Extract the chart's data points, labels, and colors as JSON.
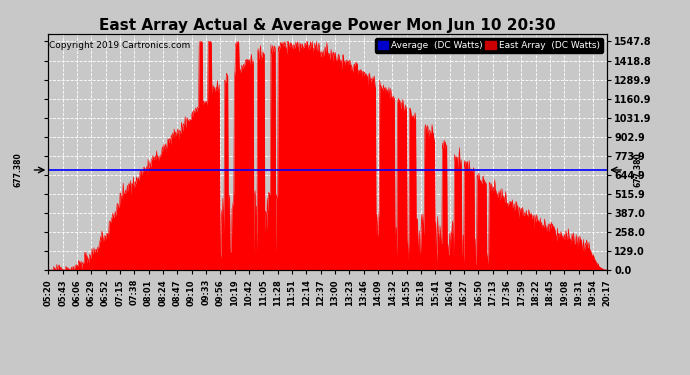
{
  "title": "East Array Actual & Average Power Mon Jun 10 20:30",
  "copyright": "Copyright 2019 Cartronics.com",
  "average_value": 677.38,
  "yticks": [
    0.0,
    129.0,
    258.0,
    387.0,
    515.9,
    644.9,
    773.9,
    902.9,
    1031.9,
    1160.9,
    1289.9,
    1418.8,
    1547.8
  ],
  "ymax": 1600,
  "ymin": 0,
  "legend_average_label": "Average  (DC Watts)",
  "legend_east_label": "East Array  (DC Watts)",
  "fill_color": "#ff0000",
  "avg_line_color": "#0000ff",
  "background_color": "#c8c8c8",
  "grid_color": "#ffffff",
  "title_fontsize": 11,
  "copyright_fontsize": 6.5,
  "tick_fontsize": 6,
  "ytick_fontsize": 7,
  "xtick_labels": [
    "05:20",
    "05:43",
    "06:06",
    "06:29",
    "06:52",
    "07:15",
    "07:38",
    "08:01",
    "08:24",
    "08:47",
    "09:10",
    "09:33",
    "09:56",
    "10:19",
    "10:42",
    "11:05",
    "11:28",
    "11:51",
    "12:14",
    "12:37",
    "13:00",
    "13:23",
    "13:46",
    "14:09",
    "14:32",
    "14:55",
    "15:18",
    "15:41",
    "16:04",
    "16:27",
    "16:50",
    "17:13",
    "17:36",
    "17:59",
    "18:22",
    "18:45",
    "19:08",
    "19:31",
    "19:54",
    "20:17"
  ]
}
